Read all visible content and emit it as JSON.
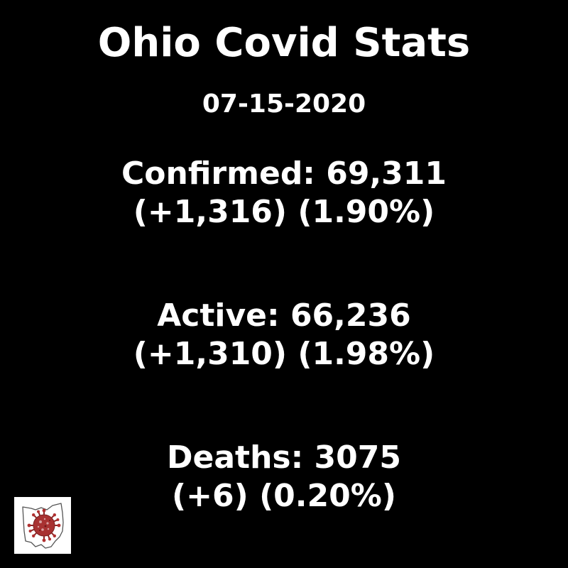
{
  "title": "Ohio Covid Stats",
  "date": "07-15-2020",
  "stats": {
    "confirmed": {
      "headline": "Confirmed: 69,311",
      "change": "(+1,316) (1.90%)"
    },
    "active": {
      "headline": "Active: 66,236",
      "change": "(+1,310) (1.98%)"
    },
    "deaths": {
      "headline": "Deaths: 3075",
      "change": "(+6) (0.20%)"
    }
  },
  "logo": {
    "icon": "ohio-state-outline-with-virus-icon",
    "colors": {
      "background": "#ffffff",
      "state_outline": "#555555",
      "virus": "#b03030"
    }
  },
  "colors": {
    "background": "#000000",
    "text": "#ffffff"
  }
}
